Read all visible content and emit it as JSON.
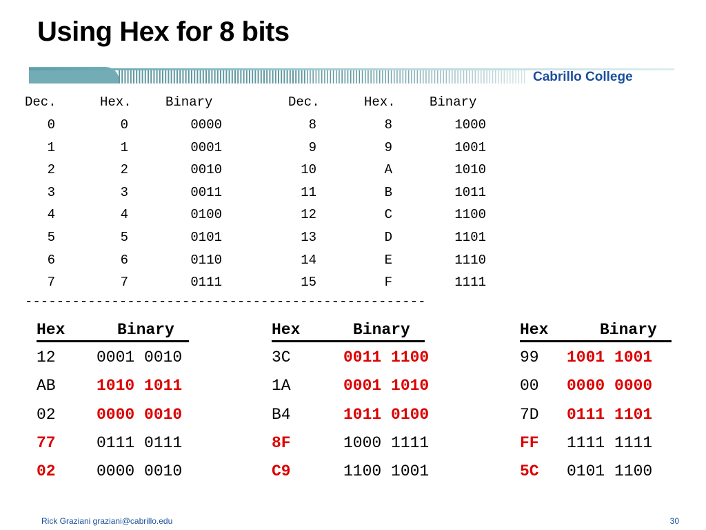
{
  "slide": {
    "title": "Using Hex for 8 bits",
    "college": "Cabrillo College",
    "footer_author": "Rick Graziani  graziani@cabrillo.edu",
    "page_number": "30",
    "banner_color": "#5a9ea8",
    "college_color": "#1a4f9a"
  },
  "conversion_table": {
    "headers": [
      "Dec.",
      "Hex.",
      "Binary",
      "Dec.",
      "Hex.",
      "Binary"
    ],
    "rows": [
      [
        "0",
        "0",
        "0000",
        "8",
        "8",
        "1000"
      ],
      [
        "1",
        "1",
        "0001",
        "9",
        "9",
        "1001"
      ],
      [
        "2",
        "2",
        "0010",
        "10",
        "A",
        "1010"
      ],
      [
        "3",
        "3",
        "0011",
        "11",
        "B",
        "1011"
      ],
      [
        "4",
        "4",
        "0100",
        "12",
        "C",
        "1100"
      ],
      [
        "5",
        "5",
        "0101",
        "13",
        "D",
        "1101"
      ],
      [
        "6",
        "6",
        "0110",
        "14",
        "E",
        "1110"
      ],
      [
        "7",
        "7",
        "0111",
        "15",
        "F",
        "1111"
      ]
    ],
    "separator": "---------------------------------------------------"
  },
  "examples": {
    "highlight_color": "#dd0000",
    "groups": [
      {
        "hex_header": "Hex",
        "binary_header": "Binary",
        "rows": [
          {
            "hex": "12",
            "binary": "0001 0010",
            "red": "none"
          },
          {
            "hex": "AB",
            "binary": "1010 1011",
            "red": "binary"
          },
          {
            "hex": "02",
            "binary": "0000 0010",
            "red": "binary"
          },
          {
            "hex": "77",
            "binary": "0111 0111",
            "red": "hex"
          },
          {
            "hex": "02",
            "binary": "0000 0010",
            "red": "hex"
          }
        ]
      },
      {
        "hex_header": "Hex",
        "binary_header": "Binary",
        "rows": [
          {
            "hex": "3C",
            "binary": "0011 1100",
            "red": "binary"
          },
          {
            "hex": "1A",
            "binary": "0001 1010",
            "red": "binary"
          },
          {
            "hex": "B4",
            "binary": "1011 0100",
            "red": "binary"
          },
          {
            "hex": "8F",
            "binary": "1000 1111",
            "red": "hex"
          },
          {
            "hex": "C9",
            "binary": "1100 1001",
            "red": "hex"
          }
        ]
      },
      {
        "hex_header": "Hex",
        "binary_header": "Binary",
        "rows": [
          {
            "hex": "99",
            "binary": "1001 1001",
            "red": "binary"
          },
          {
            "hex": "00",
            "binary": "0000 0000",
            "red": "binary"
          },
          {
            "hex": "7D",
            "binary": "0111 1101",
            "red": "binary"
          },
          {
            "hex": "FF",
            "binary": "1111 1111",
            "red": "hex"
          },
          {
            "hex": "5C",
            "binary": "0101 1100",
            "red": "hex"
          }
        ]
      }
    ]
  }
}
